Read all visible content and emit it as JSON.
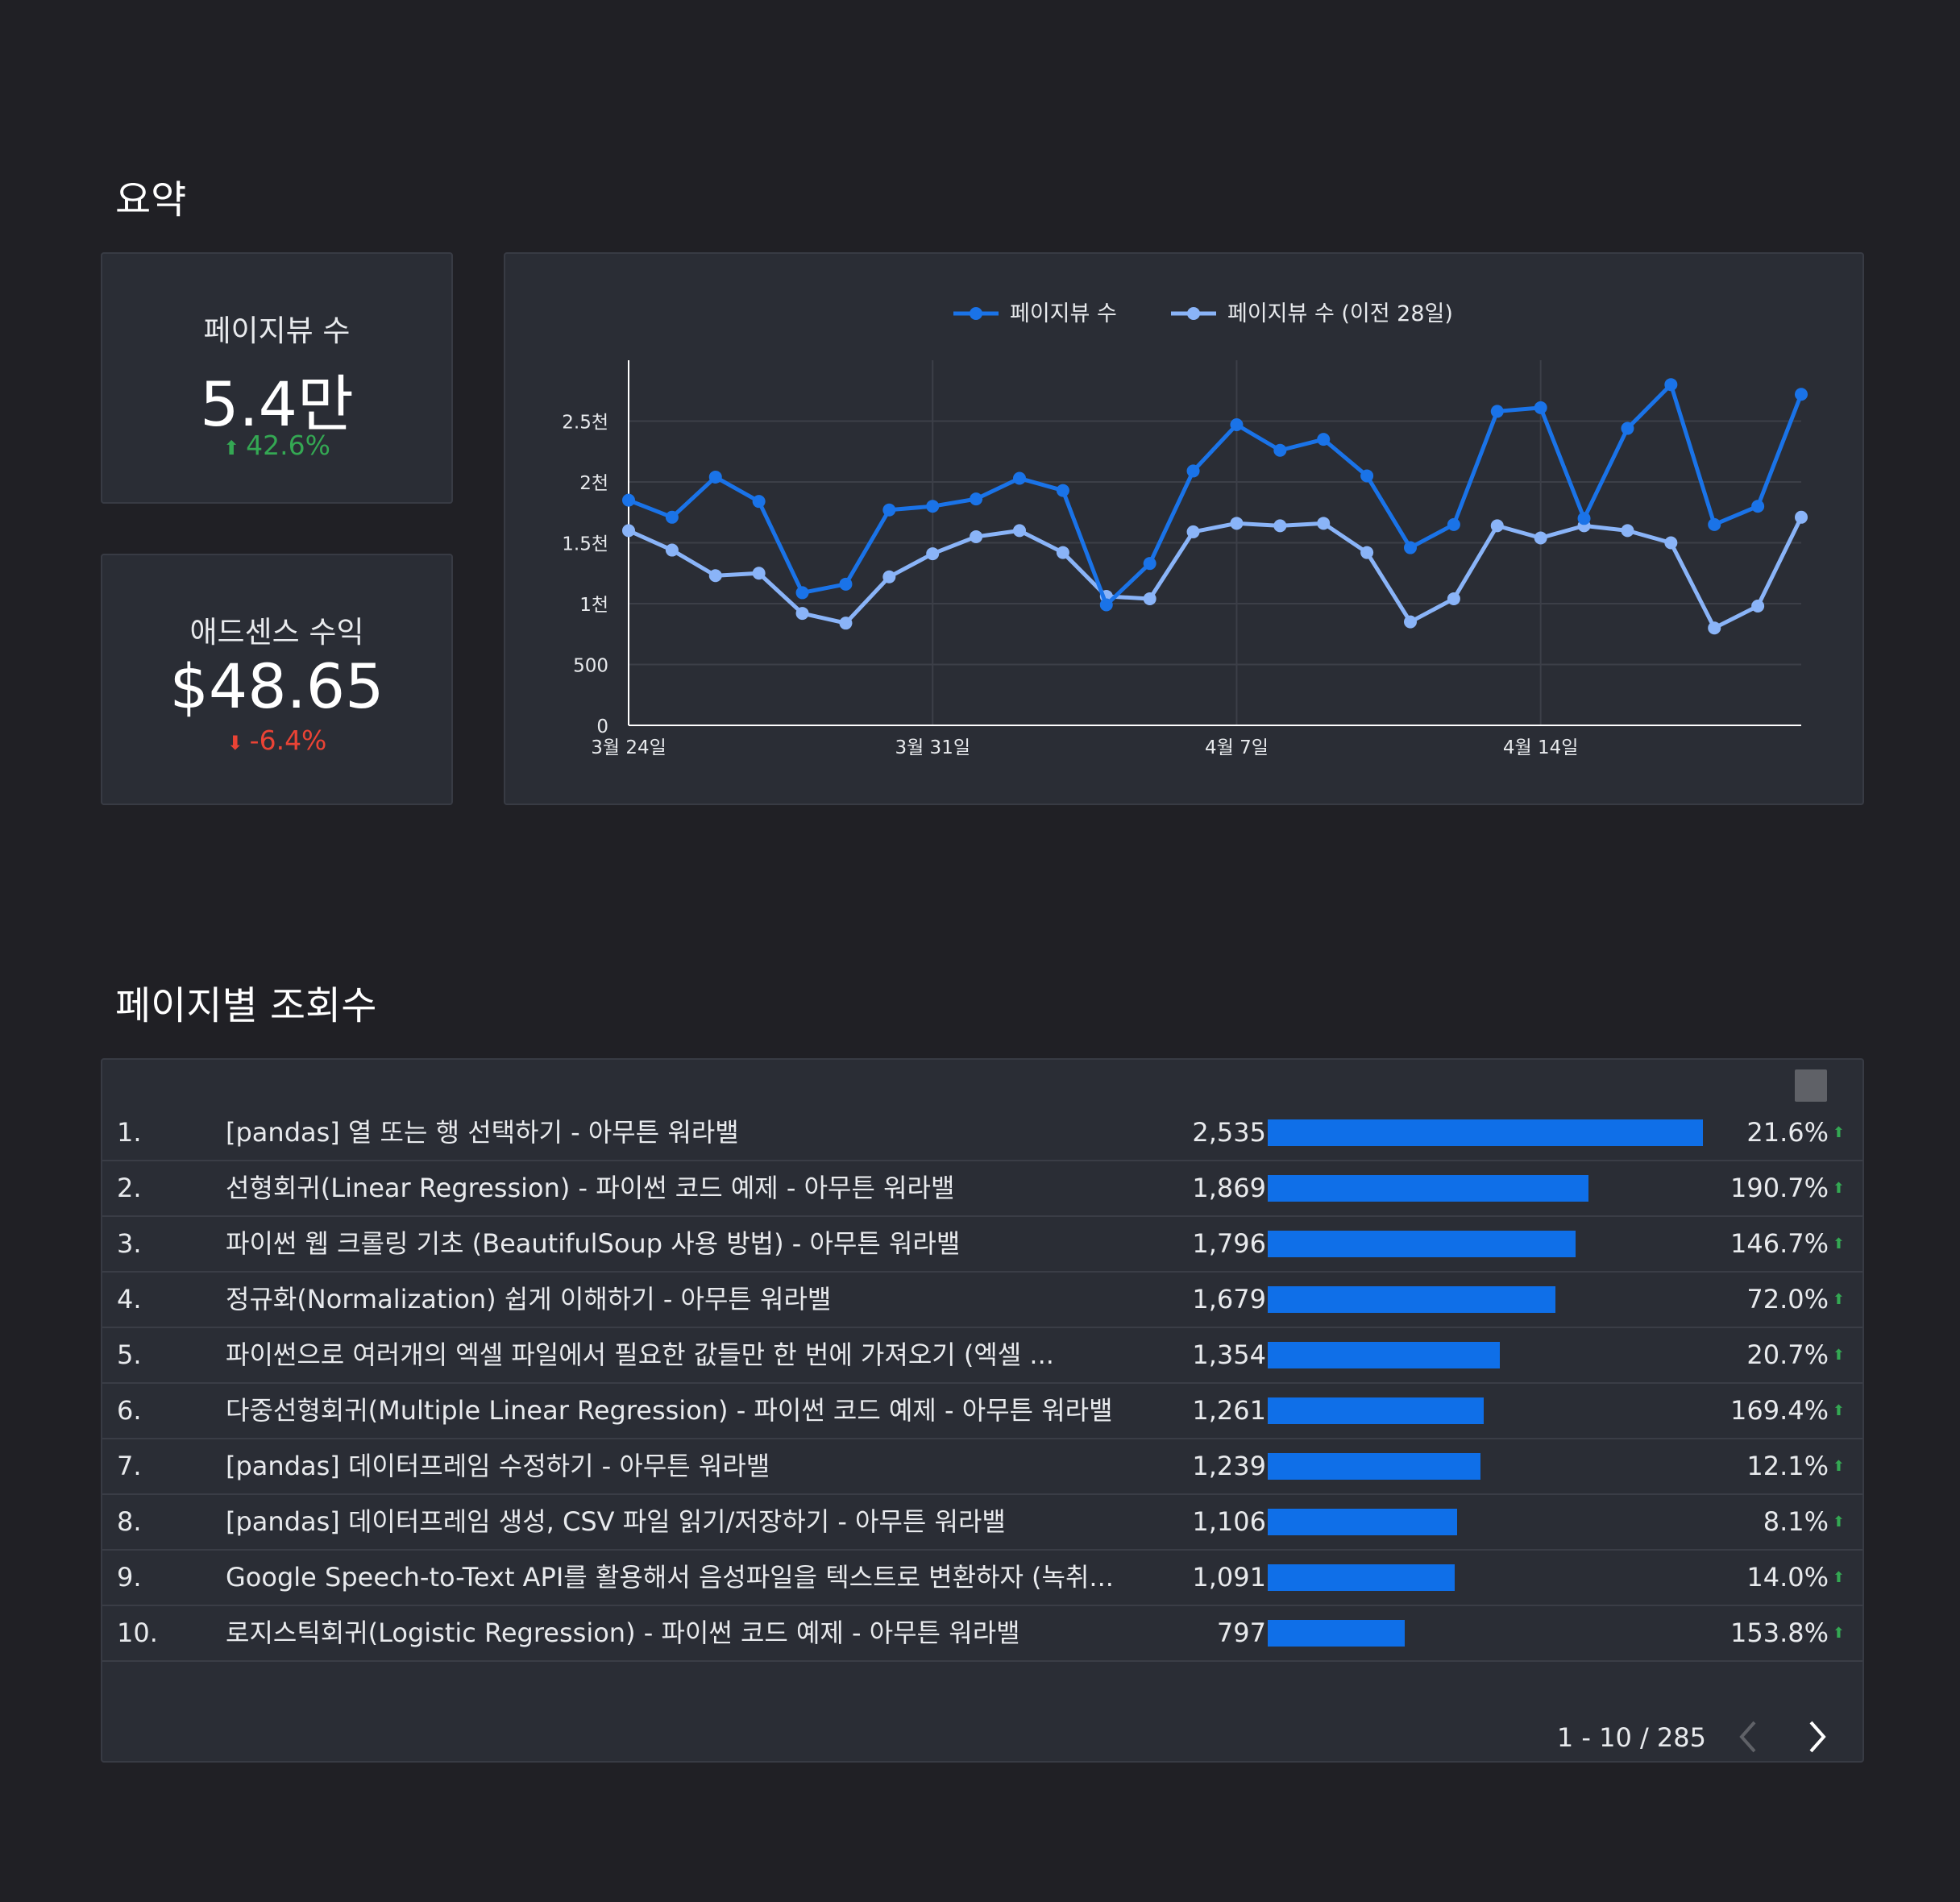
{
  "summary": {
    "title": "요약",
    "kpis": [
      {
        "label": "페이지뷰 수",
        "value": "5.4만",
        "delta": "42.6%",
        "direction": "up",
        "color": "#34a853"
      },
      {
        "label": "애드센스 수익",
        "value": "$48.65",
        "delta": "-6.4%",
        "direction": "down",
        "color": "#ea4335"
      }
    ]
  },
  "chart_data": {
    "type": "line",
    "title": "",
    "xlabel": "",
    "ylabel": "",
    "ylim": [
      0,
      3000
    ],
    "yticks": [
      0,
      500,
      1000,
      1500,
      2000,
      2500
    ],
    "ytick_labels": [
      "0",
      "500",
      "1천",
      "1.5천",
      "2천",
      "2.5천"
    ],
    "xtick_labels": [
      "3월 24일",
      "3월 31일",
      "4월 7일",
      "4월 14일"
    ],
    "xtick_index": [
      0,
      7,
      14,
      21
    ],
    "legend_position": "top-center",
    "series": [
      {
        "name": "페이지뷰 수",
        "color": "#1a73e8",
        "values": [
          1850,
          1710,
          2040,
          1840,
          1090,
          1160,
          1770,
          1800,
          1860,
          2030,
          1930,
          990,
          1330,
          2090,
          2470,
          2260,
          2350,
          2050,
          1460,
          1650,
          2580,
          2610,
          1700,
          2440,
          2800,
          1650,
          1800,
          2720
        ]
      },
      {
        "name": "페이지뷰 수 (이전 28일)",
        "color": "#8ab4f8",
        "values": [
          1600,
          1440,
          1230,
          1250,
          920,
          840,
          1220,
          1410,
          1550,
          1600,
          1420,
          1060,
          1040,
          1590,
          1660,
          1640,
          1660,
          1420,
          850,
          1040,
          1640,
          1540,
          1640,
          1600,
          1500,
          800,
          980,
          1710
        ]
      }
    ]
  },
  "pages": {
    "title": "페이지별 조회수",
    "rows": [
      {
        "rank": "1.",
        "title": "[pandas] 열 또는 행 선택하기 - 아무튼 워라밸",
        "views": "2,535",
        "share": 1.0,
        "pct": "21.6%"
      },
      {
        "rank": "2.",
        "title": "선형회귀(Linear Regression) - 파이썬 코드 예제 - 아무튼 워라밸",
        "views": "1,869",
        "share": 0.737,
        "pct": "190.7%"
      },
      {
        "rank": "3.",
        "title": "파이썬 웹 크롤링 기초 (BeautifulSoup 사용 방법) - 아무튼 워라밸",
        "views": "1,796",
        "share": 0.708,
        "pct": "146.7%"
      },
      {
        "rank": "4.",
        "title": "정규화(Normalization) 쉽게 이해하기 - 아무튼 워라밸",
        "views": "1,679",
        "share": 0.662,
        "pct": "72.0%"
      },
      {
        "rank": "5.",
        "title": "파이썬으로 여러개의 엑셀 파일에서 필요한 값들만 한 번에 가져오기 (엑셀 ...",
        "views": "1,354",
        "share": 0.534,
        "pct": "20.7%"
      },
      {
        "rank": "6.",
        "title": "다중선형회귀(Multiple Linear Regression) - 파이썬 코드 예제 - 아무튼 워라밸",
        "views": "1,261",
        "share": 0.497,
        "pct": "169.4%"
      },
      {
        "rank": "7.",
        "title": "[pandas] 데이터프레임 수정하기 - 아무튼 워라밸",
        "views": "1,239",
        "share": 0.489,
        "pct": "12.1%"
      },
      {
        "rank": "8.",
        "title": "[pandas] 데이터프레임 생성, CSV 파일 읽기/저장하기 - 아무튼 워라밸",
        "views": "1,106",
        "share": 0.436,
        "pct": "8.1%"
      },
      {
        "rank": "9.",
        "title": "Google Speech-to-Text API를 활용해서 음성파일을 텍스트로 변환하자 (녹취...",
        "views": "1,091",
        "share": 0.43,
        "pct": "14.0%"
      },
      {
        "rank": "10.",
        "title": "로지스틱회귀(Logistic Regression) - 파이썬 코드 예제 - 아무튼 워라밸",
        "views": "797",
        "share": 0.314,
        "pct": "153.8%"
      }
    ],
    "pagination": "1 - 10 / 285"
  },
  "icons": {
    "prev": "chevron-left-icon",
    "next": "chevron-right-icon",
    "menu": "square-icon"
  }
}
